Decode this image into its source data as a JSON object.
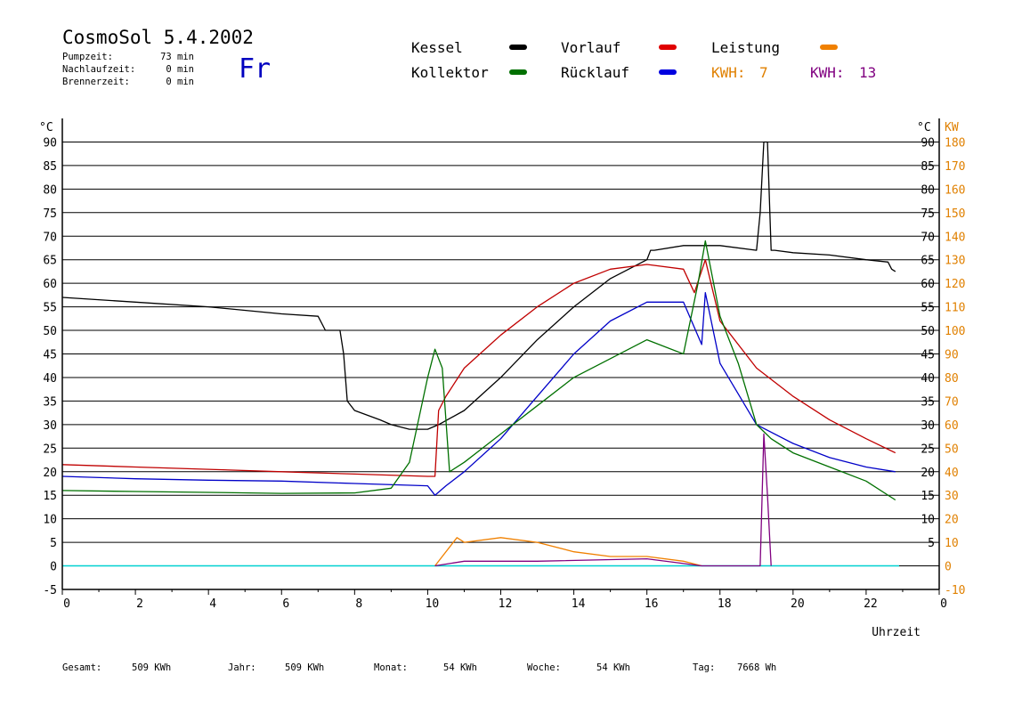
{
  "header": {
    "title": "CosmoSol 5.4.2002",
    "day": "Fr",
    "stats": [
      {
        "label": "Pumpzeit:",
        "value": "73 min"
      },
      {
        "label": "Nachlaufzeit:",
        "value": "0 min"
      },
      {
        "label": "Brennerzeit:",
        "value": "0 min"
      }
    ]
  },
  "legend": {
    "kessel": "Kessel",
    "kollektor": "Kollektor",
    "vorlauf": "Vorlauf",
    "ruecklauf": "Rücklauf",
    "leistung": "Leistung",
    "kwh_a_label": "KWH:",
    "kwh_a_value": "7",
    "kwh_b_label": "KWH:",
    "kwh_b_value": "13"
  },
  "colors": {
    "kessel": "#000000",
    "kollektor": "#007000",
    "vorlauf": "#c00000",
    "ruecklauf": "#0000c8",
    "leistung": "#f08000",
    "kwh_b": "#800080",
    "zero_line": "#00d0d0",
    "right_axis": "#e08000",
    "day": "#0000c0"
  },
  "footer": [
    {
      "label": "Gesamt:",
      "value": "509 KWh"
    },
    {
      "label": "Jahr:",
      "value": "509 KWh"
    },
    {
      "label": "Monat:",
      "value": "54 KWh"
    },
    {
      "label": "Woche:",
      "value": "54 KWh"
    },
    {
      "label": "Tag:",
      "value": "7668 Wh"
    }
  ],
  "chart_data": {
    "type": "line",
    "xlabel": "Uhrzeit",
    "ylabel_left": "°C",
    "ylabel_right_temp": "°C",
    "ylabel_right_power": "KW",
    "xlim": [
      0,
      24
    ],
    "ylim": [
      -5,
      95
    ],
    "x_ticks": [
      0,
      2,
      4,
      6,
      8,
      10,
      12,
      14,
      16,
      18,
      20,
      22
    ],
    "y_ticks_left": [
      -5,
      0,
      5,
      10,
      15,
      20,
      25,
      30,
      35,
      40,
      45,
      50,
      55,
      60,
      65,
      70,
      75,
      80,
      85,
      90
    ],
    "y_ticks_right_temp": [
      5,
      10,
      15,
      20,
      25,
      30,
      35,
      40,
      45,
      50,
      55,
      60,
      65,
      70,
      75,
      80,
      85,
      90
    ],
    "y_ticks_right_power": [
      -10,
      0,
      10,
      20,
      30,
      40,
      50,
      60,
      70,
      80,
      90,
      100,
      110,
      120,
      130,
      140,
      150,
      160,
      170,
      180
    ],
    "grid": true,
    "series": [
      {
        "name": "Kessel",
        "color": "#000000",
        "x": [
          0,
          2,
          4,
          6,
          7,
          7.2,
          7.6,
          7.7,
          7.8,
          8,
          8.7,
          9,
          9.5,
          10,
          10.3,
          11,
          12,
          13,
          14,
          15,
          16,
          16.1,
          16.2,
          17,
          18,
          19,
          19.1,
          19.2,
          19.3,
          19.4,
          19.5,
          20,
          21,
          22,
          22.6,
          22.7,
          22.8
        ],
        "y": [
          57,
          56,
          55,
          53.5,
          53,
          50,
          50,
          45,
          35,
          33,
          31,
          30,
          29,
          29,
          30,
          33,
          40,
          48,
          55,
          61,
          65,
          67,
          67,
          68,
          68,
          67,
          75,
          90,
          90,
          67,
          67,
          66.5,
          66,
          65,
          64.5,
          63,
          62.5
        ]
      },
      {
        "name": "Vorlauf",
        "color": "#c00000",
        "x": [
          0,
          2,
          4,
          6,
          8,
          10,
          10.2,
          10.3,
          10.5,
          11,
          12,
          13,
          14,
          15,
          16,
          17,
          17.3,
          17.6,
          18,
          19,
          20,
          21,
          22,
          22.8
        ],
        "y": [
          21.5,
          21,
          20.5,
          20,
          19.5,
          19,
          19,
          33,
          36,
          42,
          49,
          55,
          60,
          63,
          64,
          63,
          58,
          65,
          52,
          42,
          36,
          31,
          27,
          24
        ]
      },
      {
        "name": "Rücklauf",
        "color": "#0000c8",
        "x": [
          0,
          2,
          4,
          6,
          8,
          10,
          10.2,
          10.5,
          11,
          12,
          13,
          14,
          15,
          16,
          17,
          17.5,
          17.6,
          18,
          19,
          20,
          21,
          22,
          22.8
        ],
        "y": [
          19,
          18.5,
          18.2,
          18,
          17.5,
          17,
          15,
          17,
          20,
          27,
          36,
          45,
          52,
          56,
          56,
          47,
          58,
          43,
          30,
          26,
          23,
          21,
          20
        ]
      },
      {
        "name": "Kollektor",
        "color": "#007000",
        "x": [
          0,
          2,
          4,
          6,
          8,
          9,
          9.5,
          10,
          10.2,
          10.4,
          10.6,
          11,
          12,
          13,
          14,
          15,
          16,
          17,
          17.4,
          17.6,
          18,
          18.5,
          19,
          19.4,
          20,
          21,
          22,
          22.8
        ],
        "y": [
          16,
          15.8,
          15.6,
          15.4,
          15.5,
          16.5,
          22,
          40,
          46,
          42,
          20,
          22,
          28,
          34,
          40,
          44,
          48,
          45,
          60,
          69,
          53,
          43,
          30,
          27,
          24,
          21,
          18,
          14
        ]
      },
      {
        "name": "Leistung",
        "color": "#f08000",
        "x": [
          10.2,
          10.8,
          11,
          12,
          13,
          14,
          15,
          16,
          17,
          17.5
        ],
        "y": [
          0,
          6,
          5,
          6,
          5,
          3,
          2,
          2,
          1,
          0
        ]
      },
      {
        "name": "KWH: 13",
        "color": "#800080",
        "x": [
          10.2,
          11,
          13,
          16,
          17.5,
          19.1,
          19.2,
          19.3,
          19.4
        ],
        "y": [
          0,
          1,
          1,
          1.5,
          0,
          0,
          28,
          15,
          0
        ]
      }
    ]
  }
}
